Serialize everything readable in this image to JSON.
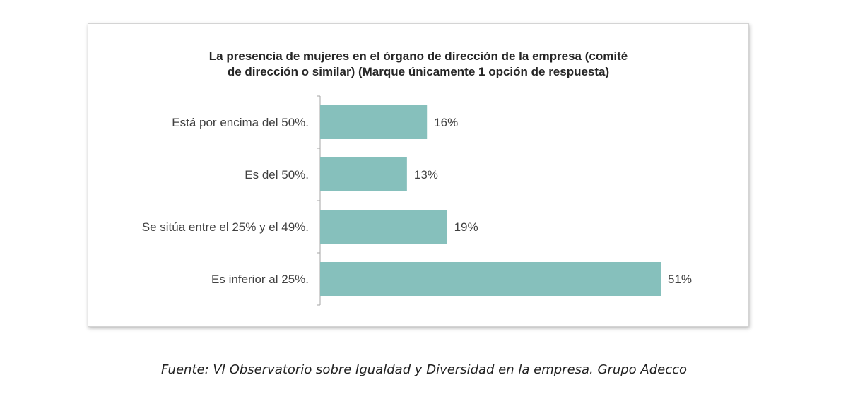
{
  "chart_data": {
    "type": "bar",
    "orientation": "horizontal",
    "title_lines": [
      "La presencia de mujeres en el órgano de dirección de la empresa (comité",
      "de dirección o similar) (Marque únicamente 1 opción de respuesta)"
    ],
    "categories": [
      "Está por encima del 50%.",
      "Es del 50%.",
      "Se sitúa entre el 25% y el 49%.",
      "Es inferior al 25%."
    ],
    "values": [
      16,
      13,
      19,
      51
    ],
    "data_labels": [
      "16%",
      "13%",
      "19%",
      "51%"
    ],
    "xlim": [
      0,
      51
    ],
    "grid": false,
    "legend": "none",
    "bar_color": "#86c0bc"
  },
  "caption": "Fuente: VI Observatorio sobre Igualdad y Diversidad en la empresa. Grupo Adecco"
}
